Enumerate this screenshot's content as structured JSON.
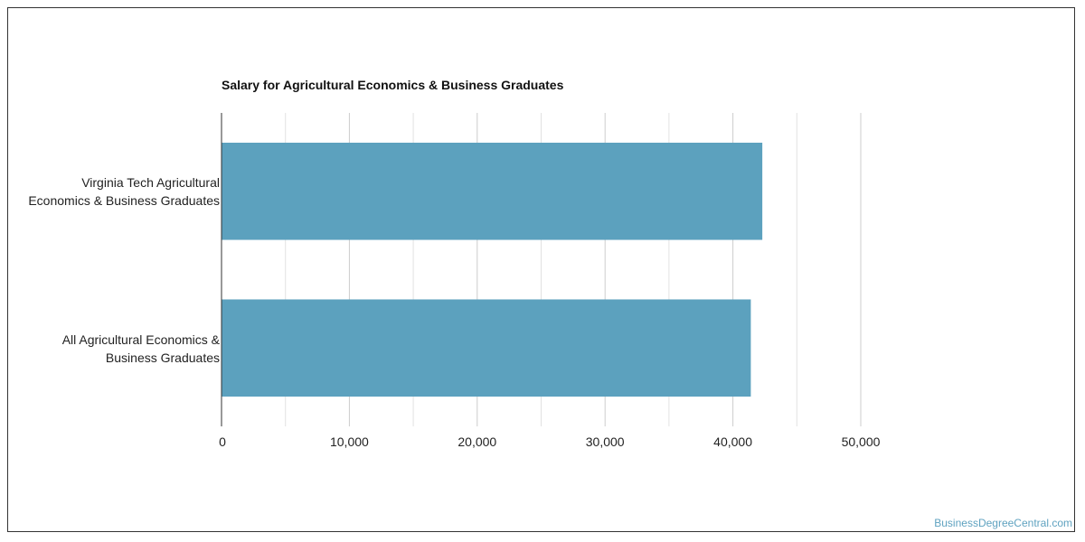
{
  "chart_data": {
    "type": "bar",
    "orientation": "horizontal",
    "title": "Salary for Agricultural Economics & Business Graduates",
    "categories": [
      "Virginia Tech Agricultural Economics & Business Graduates",
      "All Agricultural Economics & Business Graduates"
    ],
    "category_lines": [
      [
        "Virginia Tech Agricultural",
        "Economics & Business Graduates"
      ],
      [
        "All Agricultural Economics &",
        "Business Graduates"
      ]
    ],
    "values": [
      42300,
      41400
    ],
    "xlim": [
      0,
      50000
    ],
    "ticks": [
      0,
      10000,
      20000,
      30000,
      40000,
      50000
    ],
    "tick_labels": [
      "0",
      "10,000",
      "20,000",
      "30,000",
      "40,000",
      "50,000"
    ],
    "grid": true,
    "bar_color": "#5ca1be",
    "grid_color": "#cccccc"
  },
  "watermark": "BusinessDegreeCentral.com"
}
